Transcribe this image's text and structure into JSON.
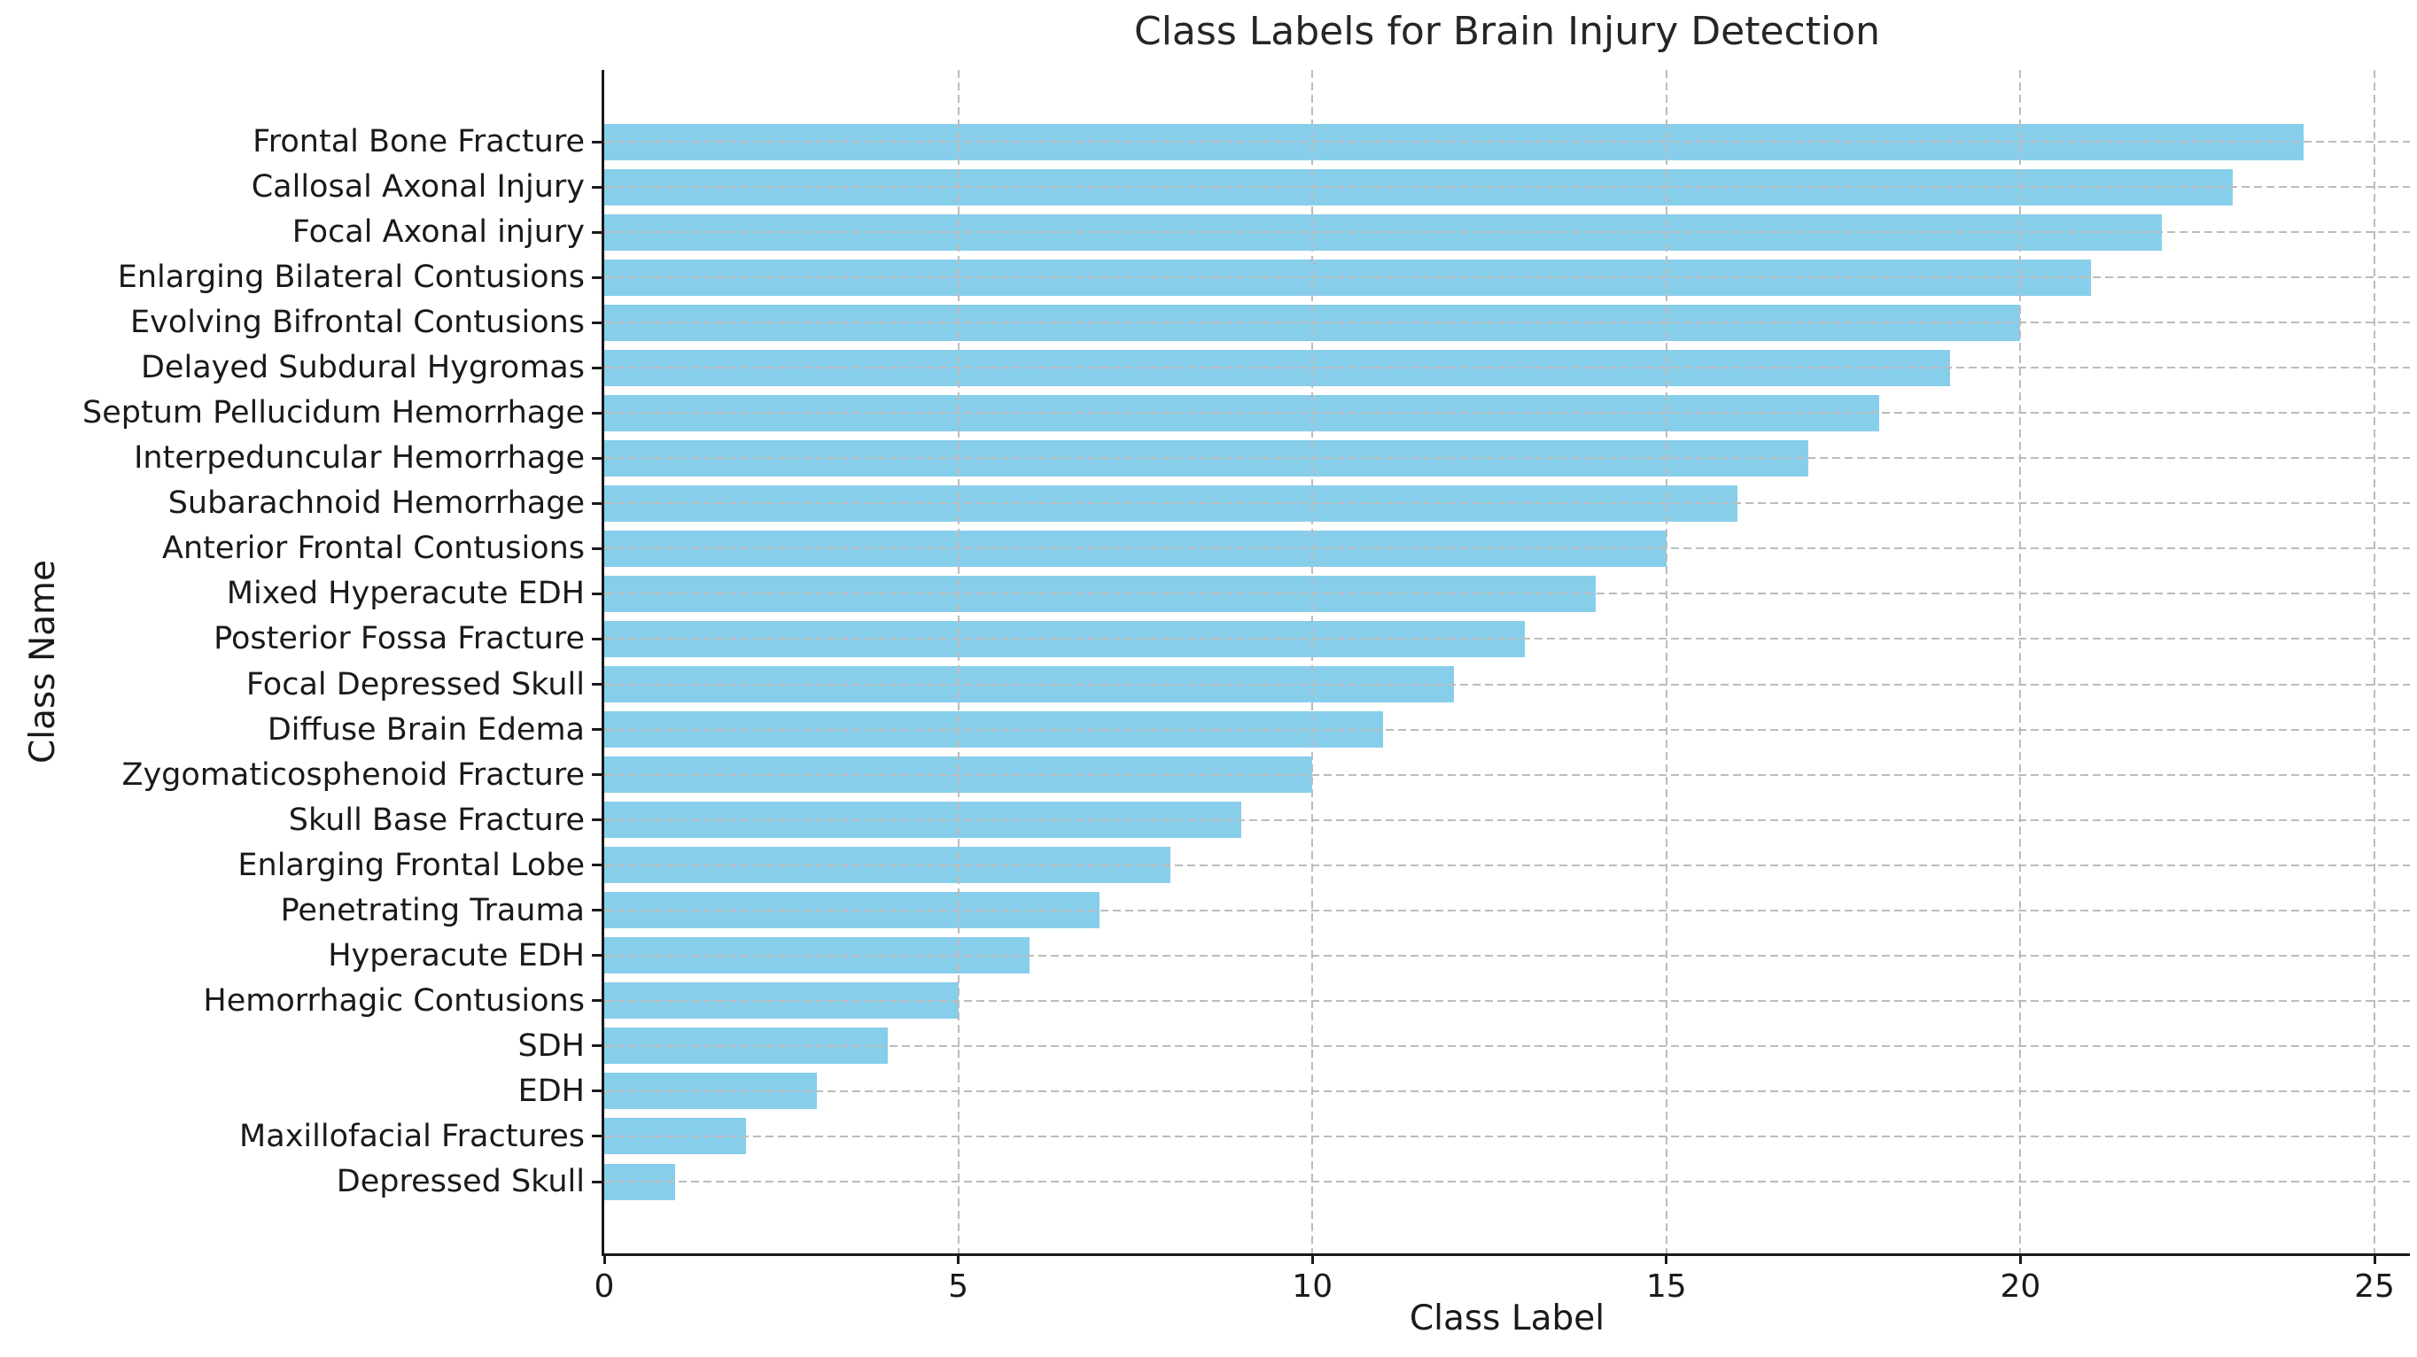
{
  "chart_data": {
    "type": "bar",
    "orientation": "horizontal",
    "title": "Class Labels for Brain Injury Detection",
    "xlabel": "Class Label",
    "ylabel": "Class Name",
    "categories": [
      "Frontal Bone Fracture",
      "Callosal Axonal Injury",
      "Focal Axonal injury",
      "Enlarging Bilateral Contusions",
      "Evolving Bifrontal Contusions",
      "Delayed Subdural Hygromas",
      "Septum Pellucidum Hemorrhage",
      "Interpeduncular Hemorrhage",
      "Subarachnoid Hemorrhage",
      "Anterior Frontal Contusions",
      "Mixed Hyperacute EDH",
      "Posterior Fossa Fracture",
      "Focal Depressed Skull",
      "Diffuse Brain Edema",
      "Zygomaticosphenoid Fracture",
      "Skull Base Fracture",
      "Enlarging Frontal Lobe",
      "Penetrating Trauma",
      "Hyperacute EDH",
      "Hemorrhagic Contusions",
      "SDH",
      "EDH",
      "Maxillofacial Fractures",
      "Depressed Skull"
    ],
    "values": [
      24,
      23,
      22,
      21,
      20,
      19,
      18,
      17,
      16,
      15,
      14,
      13,
      12,
      11,
      10,
      9,
      8,
      7,
      6,
      5,
      4,
      3,
      2,
      1
    ],
    "xlim": [
      0,
      25.5
    ],
    "xticks": [
      0,
      5,
      10,
      15,
      20,
      25
    ],
    "grid": "dashed",
    "legend": "none",
    "colors": {
      "bar": "#87CEEB",
      "grid": "#bcbcbc",
      "text": "#1a1a1a",
      "title": "#262626",
      "spine": "#1a1a1a"
    }
  }
}
